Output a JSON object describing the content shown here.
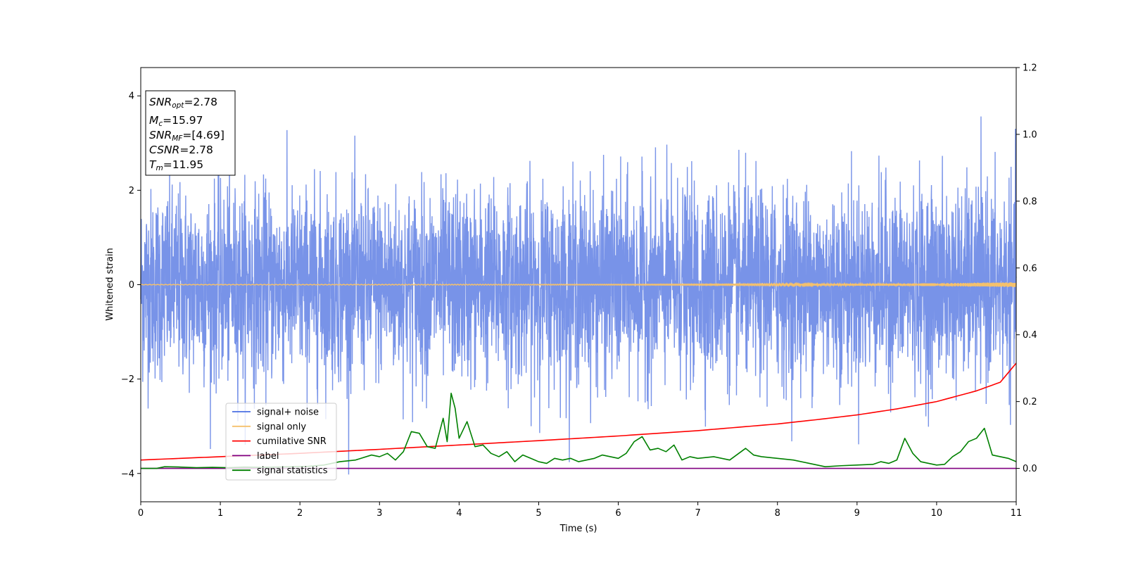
{
  "chart_data": {
    "type": "line",
    "xlabel": "Time (s)",
    "ylabel": "Whitened strain",
    "xlim": [
      0,
      11
    ],
    "ylim_left": [
      -4.6,
      4.6
    ],
    "ylim_right": [
      -0.1,
      1.2
    ],
    "x_ticks": [
      0,
      1,
      2,
      3,
      4,
      5,
      6,
      7,
      8,
      9,
      10,
      11
    ],
    "y_ticks_left": [
      -4,
      -2,
      0,
      2,
      4
    ],
    "y_ticks_left_labels": [
      "−4",
      "−2",
      "0",
      "2",
      "4"
    ],
    "y_ticks_right": [
      0.0,
      0.2,
      0.4,
      0.6,
      0.8,
      1.0,
      1.2
    ],
    "y_ticks_right_labels": [
      "0.0",
      "0.2",
      "0.4",
      "0.6",
      "0.8",
      "1.0",
      "1.2"
    ],
    "legend_position": "lower-left",
    "annotation_box": {
      "position": "top-left",
      "lines": [
        {
          "main": "SNR",
          "sub": "opt",
          "value": "=2.78"
        },
        {
          "main": "M",
          "sub": "c",
          "value": "=15.97"
        },
        {
          "main": "SNR",
          "sub": "MF",
          "value": "=[4.69]"
        },
        {
          "main": "CSNR",
          "sub": "",
          "value": "=2.78"
        },
        {
          "main": "T",
          "sub": "m",
          "value": "=11.95"
        }
      ]
    },
    "series": [
      {
        "name": "signal+ noise",
        "color": "#7893e8",
        "legend_color": "#4a6fe3",
        "axis": "left",
        "style": "noise",
        "description_values": {
          "sigma": 1.0,
          "envelope_min": -4.2,
          "envelope_max": 4.2
        }
      },
      {
        "name": "signal only",
        "color": "#f5c16c",
        "axis": "left",
        "style": "chirp",
        "x": [
          0,
          2,
          4,
          6,
          8,
          9,
          10,
          10.5,
          11
        ],
        "amplitude": [
          0.005,
          0.006,
          0.008,
          0.01,
          0.015,
          0.02,
          0.03,
          0.04,
          0.05
        ]
      },
      {
        "name": "cumilative SNR",
        "color": "#ff0000",
        "axis": "right",
        "x": [
          0,
          1,
          2,
          3,
          4,
          5,
          6,
          7,
          8,
          8.5,
          9,
          9.5,
          10,
          10.5,
          10.8,
          11
        ],
        "y": [
          0.025,
          0.035,
          0.045,
          0.057,
          0.07,
          0.083,
          0.097,
          0.113,
          0.133,
          0.146,
          0.16,
          0.178,
          0.2,
          0.232,
          0.258,
          0.315
        ]
      },
      {
        "name": "label",
        "color": "#800080",
        "axis": "right",
        "x": [
          0,
          11
        ],
        "y": [
          0.0,
          0.0
        ]
      },
      {
        "name": "signal statistics",
        "color": "#008000",
        "axis": "right",
        "x": [
          0,
          0.2,
          0.3,
          0.5,
          0.7,
          0.9,
          1.1,
          1.3,
          1.5,
          1.7,
          1.9,
          2.1,
          2.3,
          2.5,
          2.7,
          2.9,
          3.0,
          3.1,
          3.2,
          3.3,
          3.4,
          3.5,
          3.6,
          3.7,
          3.8,
          3.85,
          3.9,
          3.95,
          4.0,
          4.1,
          4.2,
          4.3,
          4.4,
          4.5,
          4.6,
          4.7,
          4.8,
          4.9,
          5.0,
          5.1,
          5.2,
          5.3,
          5.4,
          5.5,
          5.6,
          5.7,
          5.8,
          5.9,
          6.0,
          6.1,
          6.2,
          6.3,
          6.4,
          6.5,
          6.6,
          6.7,
          6.8,
          6.9,
          7.0,
          7.2,
          7.4,
          7.6,
          7.7,
          7.8,
          8.0,
          8.2,
          8.4,
          8.6,
          8.8,
          9.0,
          9.2,
          9.3,
          9.4,
          9.5,
          9.6,
          9.7,
          9.8,
          9.9,
          10.0,
          10.1,
          10.2,
          10.3,
          10.4,
          10.5,
          10.6,
          10.7,
          10.8,
          10.9,
          11.0
        ],
        "y": [
          0.0,
          0.0,
          0.005,
          0.004,
          0.002,
          0.003,
          0.002,
          0.004,
          0.003,
          0.004,
          0.005,
          0.006,
          0.01,
          0.02,
          0.025,
          0.04,
          0.035,
          0.045,
          0.025,
          0.05,
          0.11,
          0.105,
          0.065,
          0.06,
          0.15,
          0.08,
          0.225,
          0.18,
          0.09,
          0.14,
          0.065,
          0.07,
          0.045,
          0.035,
          0.05,
          0.02,
          0.04,
          0.03,
          0.02,
          0.015,
          0.03,
          0.025,
          0.03,
          0.02,
          0.025,
          0.03,
          0.04,
          0.035,
          0.03,
          0.045,
          0.08,
          0.095,
          0.055,
          0.06,
          0.05,
          0.07,
          0.025,
          0.035,
          0.03,
          0.035,
          0.025,
          0.06,
          0.04,
          0.035,
          0.03,
          0.025,
          0.015,
          0.005,
          0.008,
          0.01,
          0.012,
          0.02,
          0.015,
          0.025,
          0.09,
          0.045,
          0.02,
          0.015,
          0.01,
          0.012,
          0.035,
          0.05,
          0.08,
          0.09,
          0.12,
          0.04,
          0.035,
          0.03,
          0.02
        ]
      }
    ]
  }
}
